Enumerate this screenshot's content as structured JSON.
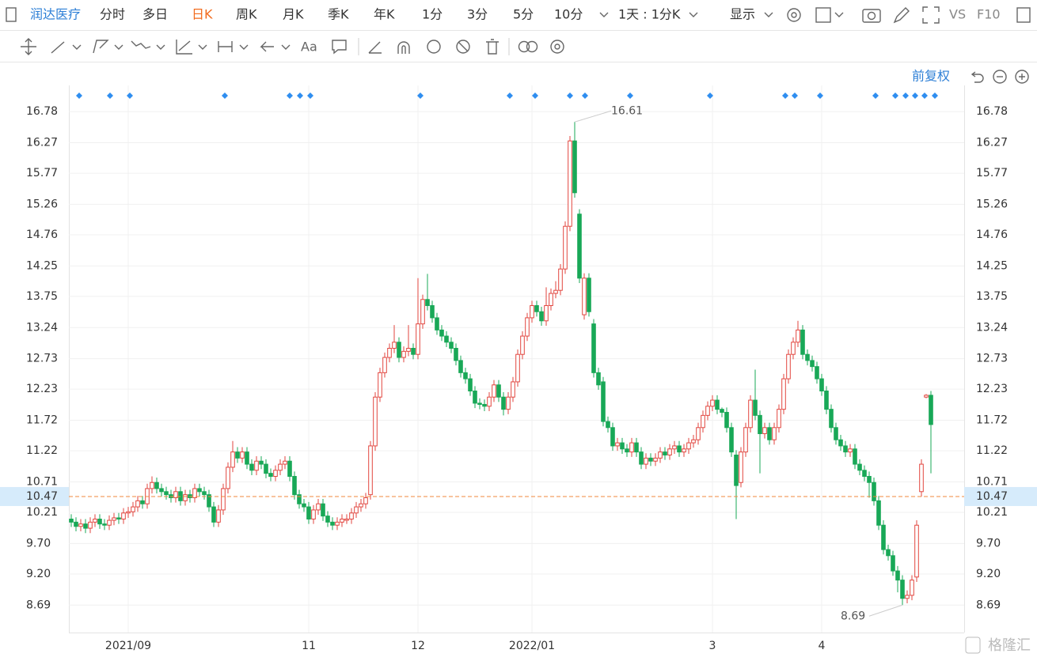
{
  "toolbar": {
    "stock": "润达医疗",
    "periods": [
      "分时",
      "多日",
      "日K",
      "周K",
      "月K",
      "季K",
      "年K",
      "1分",
      "3分",
      "5分",
      "10分"
    ],
    "interval": "1天 : 1分K",
    "display": "显示",
    "compare": "VS",
    "f10": "F10"
  },
  "drawing_tools": {
    "text": "Aa"
  },
  "chart_controls": {
    "adjust": "前复权"
  },
  "watermark": "格隆汇",
  "chart_data": {
    "type": "candlestick",
    "categories": [
      null,
      null,
      null,
      null,
      null,
      null,
      null,
      null,
      null,
      null,
      null,
      null,
      "2021/09",
      null,
      null,
      null,
      null,
      null,
      null,
      null,
      null,
      null,
      null,
      null,
      null,
      null,
      null,
      null,
      null,
      null,
      null,
      null,
      null,
      null,
      null,
      null,
      null,
      null,
      null,
      null,
      null,
      null,
      null,
      null,
      null,
      null,
      null,
      null,
      null,
      null,
      "11",
      null,
      null,
      null,
      null,
      null,
      null,
      null,
      null,
      null,
      null,
      null,
      null,
      null,
      null,
      null,
      null,
      null,
      null,
      null,
      null,
      null,
      null,
      "12",
      null,
      null,
      null,
      null,
      null,
      null,
      null,
      null,
      null,
      null,
      null,
      null,
      null,
      null,
      null,
      null,
      null,
      null,
      null,
      null,
      null,
      null,
      null,
      "2022/01",
      null,
      null,
      null,
      null,
      null,
      null,
      null,
      null,
      null,
      null,
      null,
      null,
      null,
      null,
      null,
      null,
      null,
      null,
      null,
      null,
      null,
      null,
      null,
      null,
      null,
      null,
      null,
      null,
      null,
      null,
      null,
      null,
      null,
      null,
      null,
      null,
      null,
      "3",
      null,
      null,
      null,
      null,
      null,
      null,
      null,
      null,
      null,
      null,
      null,
      null,
      null,
      null,
      null,
      null,
      null,
      null,
      null,
      null,
      null,
      null,
      "4",
      null,
      null,
      null,
      null,
      null,
      null,
      null,
      null,
      null,
      null,
      null,
      null,
      null,
      null,
      null,
      null,
      null,
      null,
      null,
      null,
      null,
      null,
      null
    ],
    "open": [
      10.1,
      10.05,
      9.98,
      10.02,
      9.95,
      10.05,
      10.1,
      10.02,
      10.0,
      10.08,
      10.12,
      10.1,
      10.2,
      10.22,
      10.3,
      10.4,
      10.35,
      10.6,
      10.7,
      10.6,
      10.55,
      10.5,
      10.45,
      10.55,
      10.4,
      10.5,
      10.45,
      10.6,
      10.55,
      10.5,
      10.3,
      10.05,
      10.25,
      10.6,
      10.95,
      11.2,
      11.1,
      11.2,
      11.0,
      10.9,
      11.05,
      11.0,
      10.85,
      10.8,
      10.9,
      11.0,
      11.05,
      10.8,
      10.5,
      10.35,
      10.3,
      10.1,
      10.25,
      10.35,
      10.15,
      10.05,
      10.0,
      10.05,
      10.08,
      10.1,
      10.2,
      10.3,
      10.35,
      10.5,
      11.3,
      12.1,
      12.5,
      12.75,
      12.9,
      13.0,
      12.75,
      12.85,
      12.9,
      12.8,
      13.3,
      13.7,
      13.6,
      13.4,
      13.2,
      13.1,
      13.0,
      12.9,
      12.7,
      12.5,
      12.4,
      12.2,
      12.0,
      11.98,
      11.95,
      12.1,
      12.3,
      12.1,
      11.9,
      12.1,
      12.35,
      12.8,
      13.1,
      13.4,
      13.6,
      13.5,
      13.35,
      13.6,
      13.8,
      13.85,
      14.2,
      14.9,
      16.3,
      15.1,
      13.45,
      14.05,
      13.3,
      12.5,
      12.35,
      11.7,
      11.6,
      11.3,
      11.35,
      11.25,
      11.2,
      11.35,
      11.2,
      11.0,
      11.1,
      11.05,
      11.1,
      11.2,
      11.15,
      11.25,
      11.3,
      11.2,
      11.25,
      11.35,
      11.4,
      11.6,
      11.8,
      11.95,
      12.05,
      11.9,
      11.85,
      11.6,
      11.15,
      10.7,
      11.2,
      11.6,
      12.05,
      11.8,
      11.5,
      11.6,
      11.4,
      11.6,
      11.9,
      12.4,
      12.8,
      13.0,
      13.2,
      12.8,
      12.7,
      12.6,
      12.4,
      12.2,
      11.9,
      11.6,
      11.4,
      11.3,
      11.2,
      11.25,
      11.0,
      10.9,
      10.8,
      10.7,
      10.4,
      10.0,
      9.6,
      9.5,
      9.25,
      9.1,
      8.8,
      8.85,
      9.15,
      10.55,
      12.1,
      12.13
    ],
    "high": [
      10.18,
      10.13,
      10.1,
      10.1,
      10.13,
      10.18,
      10.18,
      10.1,
      10.16,
      10.2,
      10.2,
      10.28,
      10.3,
      10.38,
      10.48,
      10.48,
      10.68,
      10.8,
      10.78,
      10.68,
      10.63,
      10.58,
      10.63,
      10.63,
      10.58,
      10.58,
      10.68,
      10.68,
      10.63,
      10.58,
      10.38,
      10.33,
      10.68,
      11.03,
      11.38,
      11.28,
      11.28,
      11.28,
      11.08,
      11.13,
      11.13,
      11.08,
      10.93,
      10.98,
      11.08,
      11.13,
      11.13,
      10.88,
      10.58,
      10.43,
      10.38,
      10.33,
      10.43,
      10.43,
      10.23,
      10.13,
      10.13,
      10.18,
      10.18,
      10.28,
      10.38,
      10.43,
      10.53,
      11.38,
      12.18,
      12.58,
      12.83,
      12.98,
      13.28,
      13.08,
      12.93,
      13.28,
      12.98,
      14.05,
      13.78,
      14.12,
      13.68,
      13.48,
      13.28,
      13.18,
      13.08,
      12.98,
      12.78,
      12.58,
      12.48,
      12.28,
      12.08,
      12.06,
      12.18,
      12.38,
      12.38,
      12.18,
      12.18,
      12.43,
      12.88,
      13.18,
      13.48,
      13.68,
      13.68,
      13.58,
      13.9,
      13.88,
      14.0,
      14.28,
      14.98,
      16.38,
      16.61,
      15.18,
      14.13,
      14.13,
      13.38,
      12.58,
      12.43,
      11.78,
      11.68,
      11.43,
      11.43,
      11.33,
      11.43,
      11.43,
      11.28,
      11.18,
      11.18,
      11.18,
      11.28,
      11.28,
      11.33,
      11.38,
      11.38,
      11.33,
      11.43,
      11.48,
      11.68,
      11.88,
      12.03,
      12.13,
      12.13,
      11.93,
      11.93,
      11.68,
      11.23,
      11.28,
      11.68,
      12.13,
      12.55,
      11.88,
      11.68,
      11.68,
      11.68,
      11.98,
      12.48,
      12.88,
      13.08,
      13.35,
      13.28,
      12.88,
      12.78,
      12.68,
      12.48,
      12.28,
      11.98,
      11.68,
      11.48,
      11.38,
      11.33,
      11.33,
      11.08,
      10.98,
      10.88,
      10.78,
      10.48,
      10.08,
      9.68,
      9.58,
      9.33,
      9.18,
      8.93,
      9.18,
      10.08,
      11.08,
      12.15,
      12.2
    ],
    "low": [
      9.97,
      9.9,
      9.9,
      9.87,
      9.87,
      9.97,
      9.94,
      9.92,
      9.92,
      10.0,
      10.02,
      10.02,
      10.12,
      10.14,
      10.22,
      10.27,
      10.27,
      10.52,
      10.52,
      10.47,
      10.42,
      10.37,
      10.37,
      10.32,
      10.32,
      10.37,
      10.37,
      10.47,
      10.42,
      10.22,
      9.97,
      9.97,
      10.17,
      10.52,
      10.87,
      11.02,
      11.02,
      10.92,
      10.82,
      10.82,
      10.92,
      10.77,
      10.72,
      10.72,
      10.82,
      10.92,
      10.72,
      10.42,
      10.27,
      10.22,
      10.02,
      10.02,
      10.17,
      10.07,
      9.97,
      9.92,
      9.92,
      9.97,
      10.02,
      10.02,
      10.12,
      10.22,
      10.27,
      10.42,
      11.22,
      12.02,
      12.42,
      12.67,
      12.82,
      12.67,
      12.67,
      12.77,
      12.72,
      12.72,
      13.22,
      13.52,
      13.32,
      13.12,
      13.02,
      12.92,
      12.82,
      12.62,
      12.42,
      12.32,
      12.12,
      11.92,
      11.9,
      11.87,
      11.87,
      12.02,
      12.02,
      11.8,
      11.82,
      12.02,
      12.27,
      12.72,
      13.02,
      13.32,
      13.42,
      13.27,
      13.27,
      13.52,
      13.72,
      13.77,
      14.12,
      14.82,
      15.37,
      13.97,
      13.37,
      13.42,
      12.42,
      12.22,
      11.62,
      11.52,
      11.22,
      11.22,
      11.17,
      11.12,
      11.12,
      11.12,
      10.92,
      10.92,
      10.97,
      10.97,
      11.02,
      11.07,
      11.07,
      11.17,
      11.12,
      11.12,
      11.17,
      11.27,
      11.32,
      11.52,
      11.72,
      11.87,
      11.82,
      11.77,
      11.52,
      11.12,
      10.1,
      10.62,
      11.12,
      11.52,
      11.72,
      10.85,
      11.42,
      11.32,
      11.32,
      11.52,
      11.82,
      12.32,
      12.72,
      12.92,
      12.72,
      12.62,
      12.52,
      12.32,
      12.12,
      11.82,
      11.52,
      11.32,
      11.22,
      11.12,
      11.12,
      10.92,
      10.82,
      10.72,
      10.45,
      10.32,
      9.92,
      9.52,
      9.42,
      9.17,
      8.9,
      8.69,
      8.72,
      8.77,
      9.07,
      10.47,
      12.08,
      10.85
    ],
    "close": [
      10.05,
      9.98,
      10.02,
      9.95,
      10.05,
      10.1,
      10.02,
      10.0,
      10.08,
      10.12,
      10.1,
      10.2,
      10.22,
      10.3,
      10.4,
      10.35,
      10.6,
      10.7,
      10.6,
      10.55,
      10.5,
      10.45,
      10.55,
      10.4,
      10.5,
      10.45,
      10.6,
      10.55,
      10.5,
      10.3,
      10.05,
      10.25,
      10.6,
      10.95,
      11.2,
      11.1,
      11.2,
      11.0,
      10.9,
      11.05,
      11.0,
      10.85,
      10.8,
      10.9,
      11.0,
      11.05,
      10.8,
      10.5,
      10.35,
      10.3,
      10.1,
      10.25,
      10.35,
      10.15,
      10.05,
      10.0,
      10.05,
      10.1,
      10.1,
      10.2,
      10.3,
      10.35,
      10.45,
      11.3,
      12.1,
      12.5,
      12.75,
      12.9,
      13.0,
      12.75,
      12.85,
      12.9,
      12.8,
      13.3,
      13.7,
      13.6,
      13.4,
      13.2,
      13.1,
      13.0,
      12.9,
      12.7,
      12.5,
      12.4,
      12.2,
      12.0,
      11.98,
      11.95,
      12.1,
      12.3,
      12.1,
      11.9,
      12.1,
      12.35,
      12.8,
      13.1,
      13.4,
      13.6,
      13.5,
      13.35,
      13.6,
      13.8,
      13.85,
      14.2,
      14.9,
      16.3,
      15.45,
      14.05,
      14.05,
      13.5,
      12.5,
      12.3,
      11.7,
      11.6,
      11.3,
      11.35,
      11.25,
      11.2,
      11.35,
      11.2,
      11.0,
      11.1,
      11.05,
      11.1,
      11.2,
      11.15,
      11.25,
      11.3,
      11.2,
      11.25,
      11.35,
      11.4,
      11.6,
      11.8,
      11.95,
      12.05,
      11.9,
      11.85,
      11.6,
      11.2,
      10.65,
      11.2,
      11.6,
      12.05,
      11.8,
      11.5,
      11.6,
      11.4,
      11.6,
      11.9,
      12.4,
      12.8,
      13.0,
      13.2,
      12.8,
      12.7,
      12.6,
      12.4,
      12.2,
      11.9,
      11.6,
      11.4,
      11.3,
      11.2,
      11.25,
      11.0,
      10.9,
      10.8,
      10.7,
      10.4,
      10.0,
      9.6,
      9.5,
      9.25,
      9.1,
      8.8,
      8.85,
      9.1,
      10.0,
      11.0,
      12.13,
      11.65
    ],
    "up_color": "#e2463f",
    "down_color": "#18a857",
    "ylim": [
      8.24,
      17.21
    ],
    "yticks": [
      16.78,
      16.27,
      15.77,
      15.26,
      14.76,
      14.25,
      13.75,
      13.24,
      12.73,
      12.23,
      11.72,
      11.22,
      10.71,
      10.21,
      {
        "value": 9.7,
        "label": "9.70"
      },
      {
        "value": 9.2,
        "label": "9.20"
      },
      8.69
    ],
    "grid": true,
    "reference_line": 10.47,
    "reference_color": "#f0883c",
    "annotations": [
      16.61,
      8.69
    ]
  }
}
